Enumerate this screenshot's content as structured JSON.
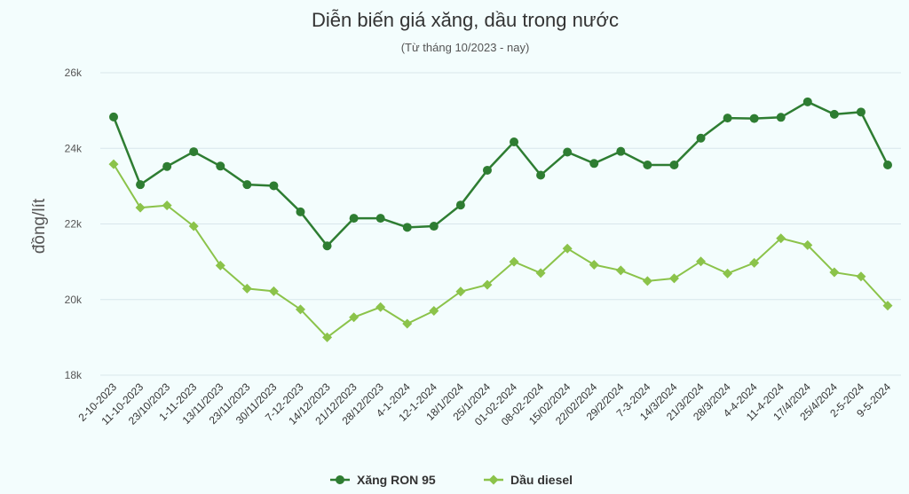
{
  "chart_data": {
    "type": "line",
    "title": "Diễn biến giá xăng, dầu trong nước",
    "subtitle": "(Từ tháng 10/2023 - nay)",
    "ylabel": "đồng/lít",
    "xlabel": "",
    "ylim": [
      18000,
      26000
    ],
    "yticks": [
      {
        "value": 18000,
        "label": "18k"
      },
      {
        "value": 20000,
        "label": "20k"
      },
      {
        "value": 22000,
        "label": "22k"
      },
      {
        "value": 24000,
        "label": "24k"
      },
      {
        "value": 26000,
        "label": "26k"
      }
    ],
    "grid": true,
    "legend_position": "bottom",
    "categories": [
      "2-10-2023",
      "11-10-2023",
      "23/10/2023",
      "1-11-2023",
      "13/11/2023",
      "23/11/2023",
      "30/11/2023",
      "7-12-2023",
      "14/12/2023",
      "21/12/2023",
      "28/12/2023",
      "4-1-2024",
      "12-1-2024",
      "18/1/2024",
      "25/1/2024",
      "01-02-2024",
      "08-02-2024",
      "15/02/2024",
      "22/02/2024",
      "29/2/2024",
      "7-3-2024",
      "14/3/2024",
      "21/3/2024",
      "28/3/2024",
      "4-4-2024",
      "11-4-2024",
      "17/4/2024",
      "25/4/2024",
      "2-5-2024",
      "9-5-2024"
    ],
    "series": [
      {
        "name": "Xăng RON 95",
        "color": "#2e7d32",
        "marker": "circle",
        "values": [
          24830,
          23040,
          23520,
          23910,
          23530,
          23040,
          23010,
          22320,
          21420,
          22150,
          22150,
          21910,
          21940,
          22500,
          23420,
          24170,
          23290,
          23900,
          23600,
          23920,
          23560,
          23560,
          24270,
          24800,
          24790,
          24820,
          25230,
          24900,
          24960,
          23560
        ]
      },
      {
        "name": "Dầu diesel",
        "color": "#8bc34a",
        "marker": "diamond",
        "values": [
          23580,
          22430,
          22490,
          21940,
          20900,
          20290,
          20220,
          19740,
          19000,
          19530,
          19800,
          19360,
          19700,
          20210,
          20390,
          21000,
          20700,
          21350,
          20920,
          20770,
          20490,
          20560,
          21010,
          20690,
          20970,
          21620,
          21440,
          20720,
          20610,
          19840
        ]
      }
    ]
  }
}
